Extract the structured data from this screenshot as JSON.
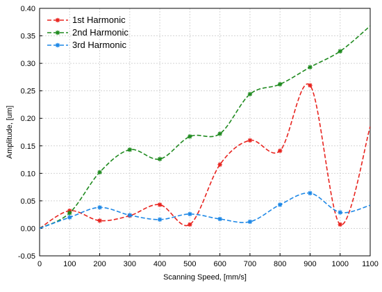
{
  "chart_data": {
    "type": "line",
    "xlabel": "Scanning Speed, [mm/s]",
    "ylabel": "Amplitude, [um]",
    "xlim": [
      0,
      1100
    ],
    "ylim": [
      -0.05,
      0.4
    ],
    "x_ticks": [
      0,
      100,
      200,
      300,
      400,
      500,
      600,
      700,
      800,
      900,
      1000,
      1100
    ],
    "x_tick_labels": [
      "0",
      "100",
      "200",
      "300",
      "400",
      "500",
      "600",
      "700",
      "800",
      "900",
      "1000",
      "1100"
    ],
    "y_ticks": [
      -0.05,
      0.0,
      0.05,
      0.1,
      0.15,
      0.2,
      0.25,
      0.3,
      0.35,
      0.4
    ],
    "y_tick_labels": [
      "-0.05",
      "0.00",
      "0.05",
      "0.10",
      "0.15",
      "0.20",
      "0.25",
      "0.30",
      "0.35",
      "0.40"
    ],
    "grid": true,
    "legend_position": "top-left",
    "line_style": "dashed, smooth spline with star markers",
    "x": [
      0,
      100,
      200,
      300,
      400,
      500,
      600,
      700,
      800,
      900,
      1000,
      1100
    ],
    "series": [
      {
        "name": "1st  Harmonic",
        "color": "#e8231e",
        "values": [
          0.0,
          0.032,
          0.014,
          0.023,
          0.043,
          0.007,
          0.116,
          0.16,
          0.141,
          0.26,
          0.007,
          0.185
        ]
      },
      {
        "name": "2nd Harmonic",
        "color": "#1f8a1f",
        "values": [
          0.0,
          0.028,
          0.102,
          0.143,
          0.126,
          0.167,
          0.172,
          0.244,
          0.262,
          0.293,
          0.322,
          0.368
        ]
      },
      {
        "name": "3rd  Harmonic",
        "color": "#1c87e6",
        "values": [
          0.0,
          0.02,
          0.038,
          0.024,
          0.016,
          0.026,
          0.017,
          0.012,
          0.043,
          0.064,
          0.029,
          0.042
        ]
      }
    ]
  }
}
